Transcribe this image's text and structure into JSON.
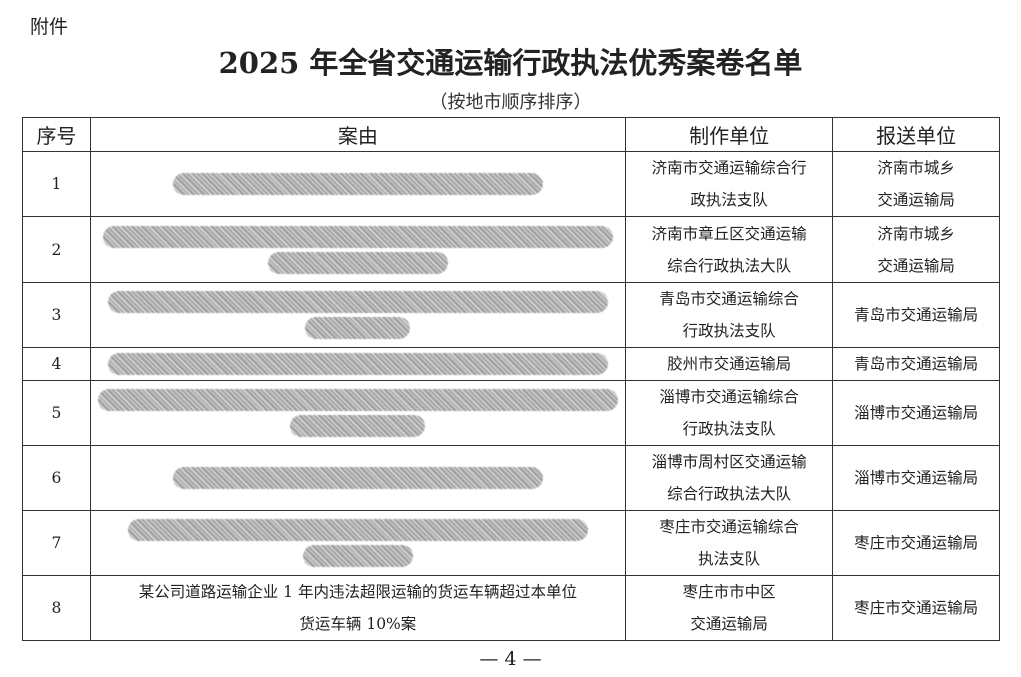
{
  "attachment_label": "附件",
  "title": "2025 年全省交通运输行政执法优秀案卷名单",
  "subtitle": "（按地市顺序排序）",
  "table": {
    "headers": [
      "序号",
      "案由",
      "制作单位",
      "报送单位"
    ],
    "rows": [
      {
        "no": "1",
        "case": "",
        "redacted": true,
        "maker": [
          "济南市交通运输综合行",
          "政执法支队"
        ],
        "sender": [
          "济南市城乡",
          "交通运输局"
        ]
      },
      {
        "no": "2",
        "case": "",
        "redacted": true,
        "maker": [
          "济南市章丘区交通运输",
          "综合行政执法大队"
        ],
        "sender": [
          "济南市城乡",
          "交通运输局"
        ]
      },
      {
        "no": "3",
        "case": "",
        "redacted": true,
        "maker": [
          "青岛市交通运输综合",
          "行政执法支队"
        ],
        "sender": [
          "青岛市交通运输局"
        ]
      },
      {
        "no": "4",
        "case": "",
        "redacted": true,
        "maker": [
          "胶州市交通运输局"
        ],
        "sender": [
          "青岛市交通运输局"
        ]
      },
      {
        "no": "5",
        "case": "",
        "redacted": true,
        "maker": [
          "淄博市交通运输综合",
          "行政执法支队"
        ],
        "sender": [
          "淄博市交通运输局"
        ]
      },
      {
        "no": "6",
        "case": "",
        "redacted": true,
        "maker": [
          "淄博市周村区交通运输",
          "综合行政执法大队"
        ],
        "sender": [
          "淄博市交通运输局"
        ]
      },
      {
        "no": "7",
        "case": "",
        "redacted": true,
        "maker": [
          "枣庄市交通运输综合",
          "执法支队"
        ],
        "sender": [
          "枣庄市交通运输局"
        ]
      },
      {
        "no": "8",
        "case": [
          "某公司道路运输企业 1 年内违法超限运输的货运车辆超过本单位",
          "货运车辆 10%案"
        ],
        "redacted": false,
        "maker": [
          "枣庄市市中区",
          "交通运输局"
        ],
        "sender": [
          "枣庄市交通运输局"
        ]
      }
    ]
  },
  "page_number": "— 4 —"
}
